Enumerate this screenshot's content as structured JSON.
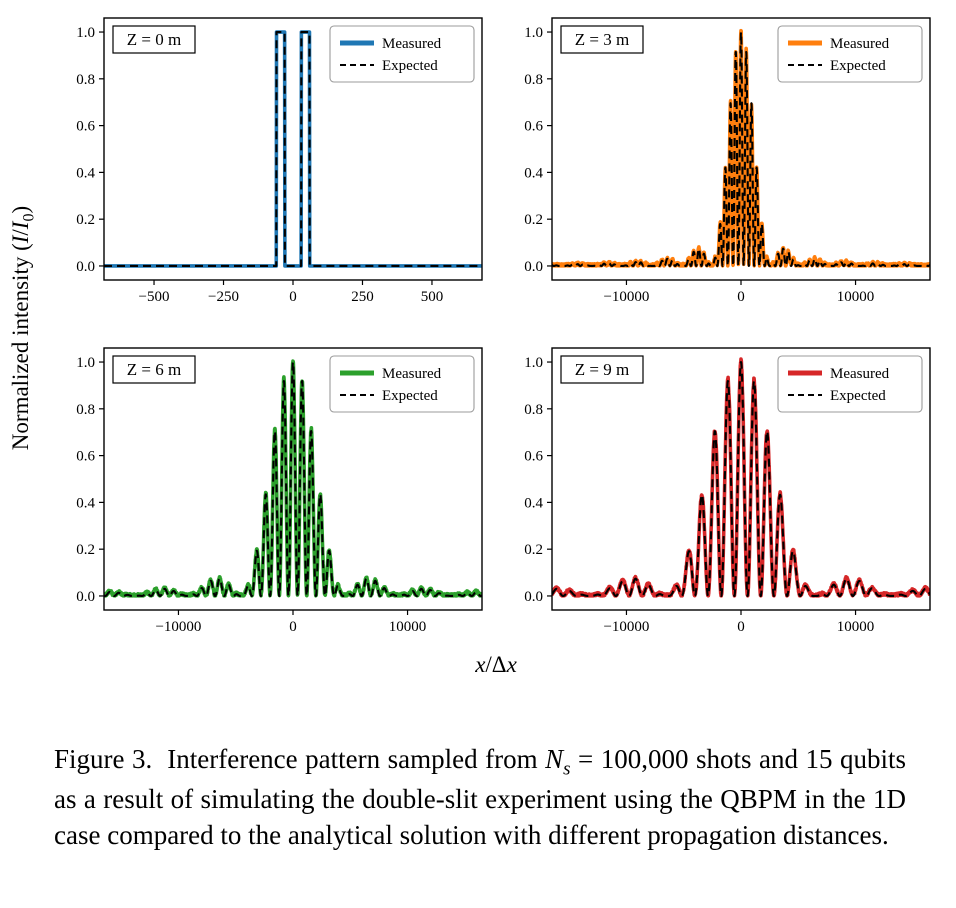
{
  "figure": {
    "y_axis_label": [
      {
        "t": "Normalized intensity ("
      },
      {
        "t": "I",
        "i": true
      },
      {
        "t": "/"
      },
      {
        "t": "I",
        "i": true
      },
      {
        "t": "0",
        "sub": true
      },
      {
        "t": ")"
      }
    ],
    "x_axis_label": [
      {
        "t": "x",
        "i": true
      },
      {
        "t": "/Δ"
      },
      {
        "t": "x",
        "i": true
      }
    ],
    "legend_measured": "Measured",
    "legend_expected": "Expected",
    "background": "#ffffff"
  },
  "chart_data": [
    {
      "type": "line",
      "panel_label": "Z = 0 m",
      "series": [
        {
          "name": "Measured",
          "color": "#1f77b4",
          "style": "solid"
        },
        {
          "name": "Expected",
          "color": "#000000",
          "style": "dashed"
        }
      ],
      "x_range": [
        -680,
        680
      ],
      "y_range": [
        -0.06,
        1.06
      ],
      "x_ticks": [
        {
          "v": -500,
          "label": "−500"
        },
        {
          "v": -250,
          "label": "−250"
        },
        {
          "v": 0,
          "label": "0"
        },
        {
          "v": 250,
          "label": "250"
        },
        {
          "v": 500,
          "label": "500"
        }
      ],
      "y_ticks": [
        {
          "v": 0.0,
          "label": "0.0"
        },
        {
          "v": 0.2,
          "label": "0.2"
        },
        {
          "v": 0.4,
          "label": "0.4"
        },
        {
          "v": 0.6,
          "label": "0.6"
        },
        {
          "v": 0.8,
          "label": "0.8"
        },
        {
          "v": 1.0,
          "label": "1.0"
        }
      ],
      "model": {
        "kind": "double_slit_aperture",
        "slit_center": 45,
        "slit_width": 30,
        "peak": 1.0
      },
      "noise": {
        "relative": 0,
        "baseline": 0
      }
    },
    {
      "type": "line",
      "panel_label": "Z = 3 m",
      "series": [
        {
          "name": "Measured",
          "color": "#ff7f0e",
          "style": "solid"
        },
        {
          "name": "Expected",
          "color": "#000000",
          "style": "dashed"
        }
      ],
      "x_range": [
        -16500,
        16500
      ],
      "y_range": [
        -0.06,
        1.06
      ],
      "x_ticks": [
        {
          "v": -10000,
          "label": "−10000"
        },
        {
          "v": 0,
          "label": "0"
        },
        {
          "v": 10000,
          "label": "10000"
        }
      ],
      "y_ticks": [
        {
          "v": 0.0,
          "label": "0.0"
        },
        {
          "v": 0.2,
          "label": "0.2"
        },
        {
          "v": 0.4,
          "label": "0.4"
        },
        {
          "v": 0.6,
          "label": "0.6"
        },
        {
          "v": 0.8,
          "label": "0.8"
        },
        {
          "v": 1.0,
          "label": "1.0"
        }
      ],
      "model": {
        "kind": "fraunhofer_double_slit",
        "fringe_period": 460,
        "envelope_first_zero": 2600,
        "peak": 1.0
      },
      "noise": {
        "relative": 0.05,
        "baseline": 0.012
      }
    },
    {
      "type": "line",
      "panel_label": "Z = 6 m",
      "series": [
        {
          "name": "Measured",
          "color": "#2ca02c",
          "style": "solid"
        },
        {
          "name": "Expected",
          "color": "#000000",
          "style": "dashed"
        }
      ],
      "x_range": [
        -16500,
        16500
      ],
      "y_range": [
        -0.06,
        1.06
      ],
      "x_ticks": [
        {
          "v": -10000,
          "label": "−10000"
        },
        {
          "v": 0,
          "label": "0"
        },
        {
          "v": 10000,
          "label": "10000"
        }
      ],
      "y_ticks": [
        {
          "v": 0.0,
          "label": "0.0"
        },
        {
          "v": 0.2,
          "label": "0.2"
        },
        {
          "v": 0.4,
          "label": "0.4"
        },
        {
          "v": 0.6,
          "label": "0.6"
        },
        {
          "v": 0.8,
          "label": "0.8"
        },
        {
          "v": 1.0,
          "label": "1.0"
        }
      ],
      "model": {
        "kind": "fraunhofer_double_slit",
        "fringe_period": 800,
        "envelope_first_zero": 4600,
        "peak": 1.0
      },
      "noise": {
        "relative": 0.05,
        "baseline": 0.012
      }
    },
    {
      "type": "line",
      "panel_label": "Z = 9 m",
      "series": [
        {
          "name": "Measured",
          "color": "#d62728",
          "style": "solid"
        },
        {
          "name": "Expected",
          "color": "#000000",
          "style": "dashed"
        }
      ],
      "x_range": [
        -16500,
        16500
      ],
      "y_range": [
        -0.06,
        1.06
      ],
      "x_ticks": [
        {
          "v": -10000,
          "label": "−10000"
        },
        {
          "v": 0,
          "label": "0"
        },
        {
          "v": 10000,
          "label": "10000"
        }
      ],
      "y_ticks": [
        {
          "v": 0.0,
          "label": "0.0"
        },
        {
          "v": 0.2,
          "label": "0.2"
        },
        {
          "v": 0.4,
          "label": "0.4"
        },
        {
          "v": 0.6,
          "label": "0.6"
        },
        {
          "v": 0.8,
          "label": "0.8"
        },
        {
          "v": 1.0,
          "label": "1.0"
        }
      ],
      "model": {
        "kind": "fraunhofer_double_slit",
        "fringe_period": 1150,
        "envelope_first_zero": 6600,
        "peak": 1.0
      },
      "noise": {
        "relative": 0.05,
        "baseline": 0.012
      }
    }
  ],
  "caption": [
    {
      "t": "Figure 3.  Interference pattern sampled from "
    },
    {
      "t": "N",
      "i": true
    },
    {
      "t": "s",
      "i": true,
      "sub": true
    },
    {
      "t": " = 100,000 shots and 15 qubits as a result of simulating the double-slit experiment using the QBPM in the 1D case compared to the analytical solution with different propagation distances."
    }
  ]
}
